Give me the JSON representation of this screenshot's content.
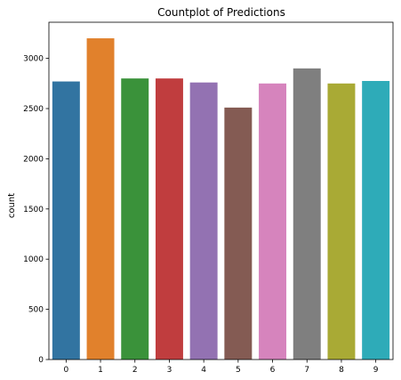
{
  "chart_data": {
    "type": "bar",
    "title": "Countplot of Predictions",
    "xlabel": "",
    "ylabel": "count",
    "categories": [
      "0",
      "1",
      "2",
      "3",
      "4",
      "5",
      "6",
      "7",
      "8",
      "9"
    ],
    "values": [
      2770,
      3200,
      2800,
      2800,
      2760,
      2510,
      2750,
      2900,
      2750,
      2775
    ],
    "colors": [
      "#3274a1",
      "#e1812c",
      "#3a923a",
      "#c03d3e",
      "#9372b2",
      "#845b53",
      "#d684bd",
      "#7f7f7f",
      "#a9aa35",
      "#2eabb8"
    ],
    "yticks": [
      0,
      500,
      1000,
      1500,
      2000,
      2500,
      3000
    ],
    "ytick_labels": [
      "0",
      "500",
      "1000",
      "1500",
      "2000",
      "2500",
      "3000"
    ],
    "ylim": [
      0,
      3360
    ],
    "grid": false,
    "legend": "none"
  }
}
